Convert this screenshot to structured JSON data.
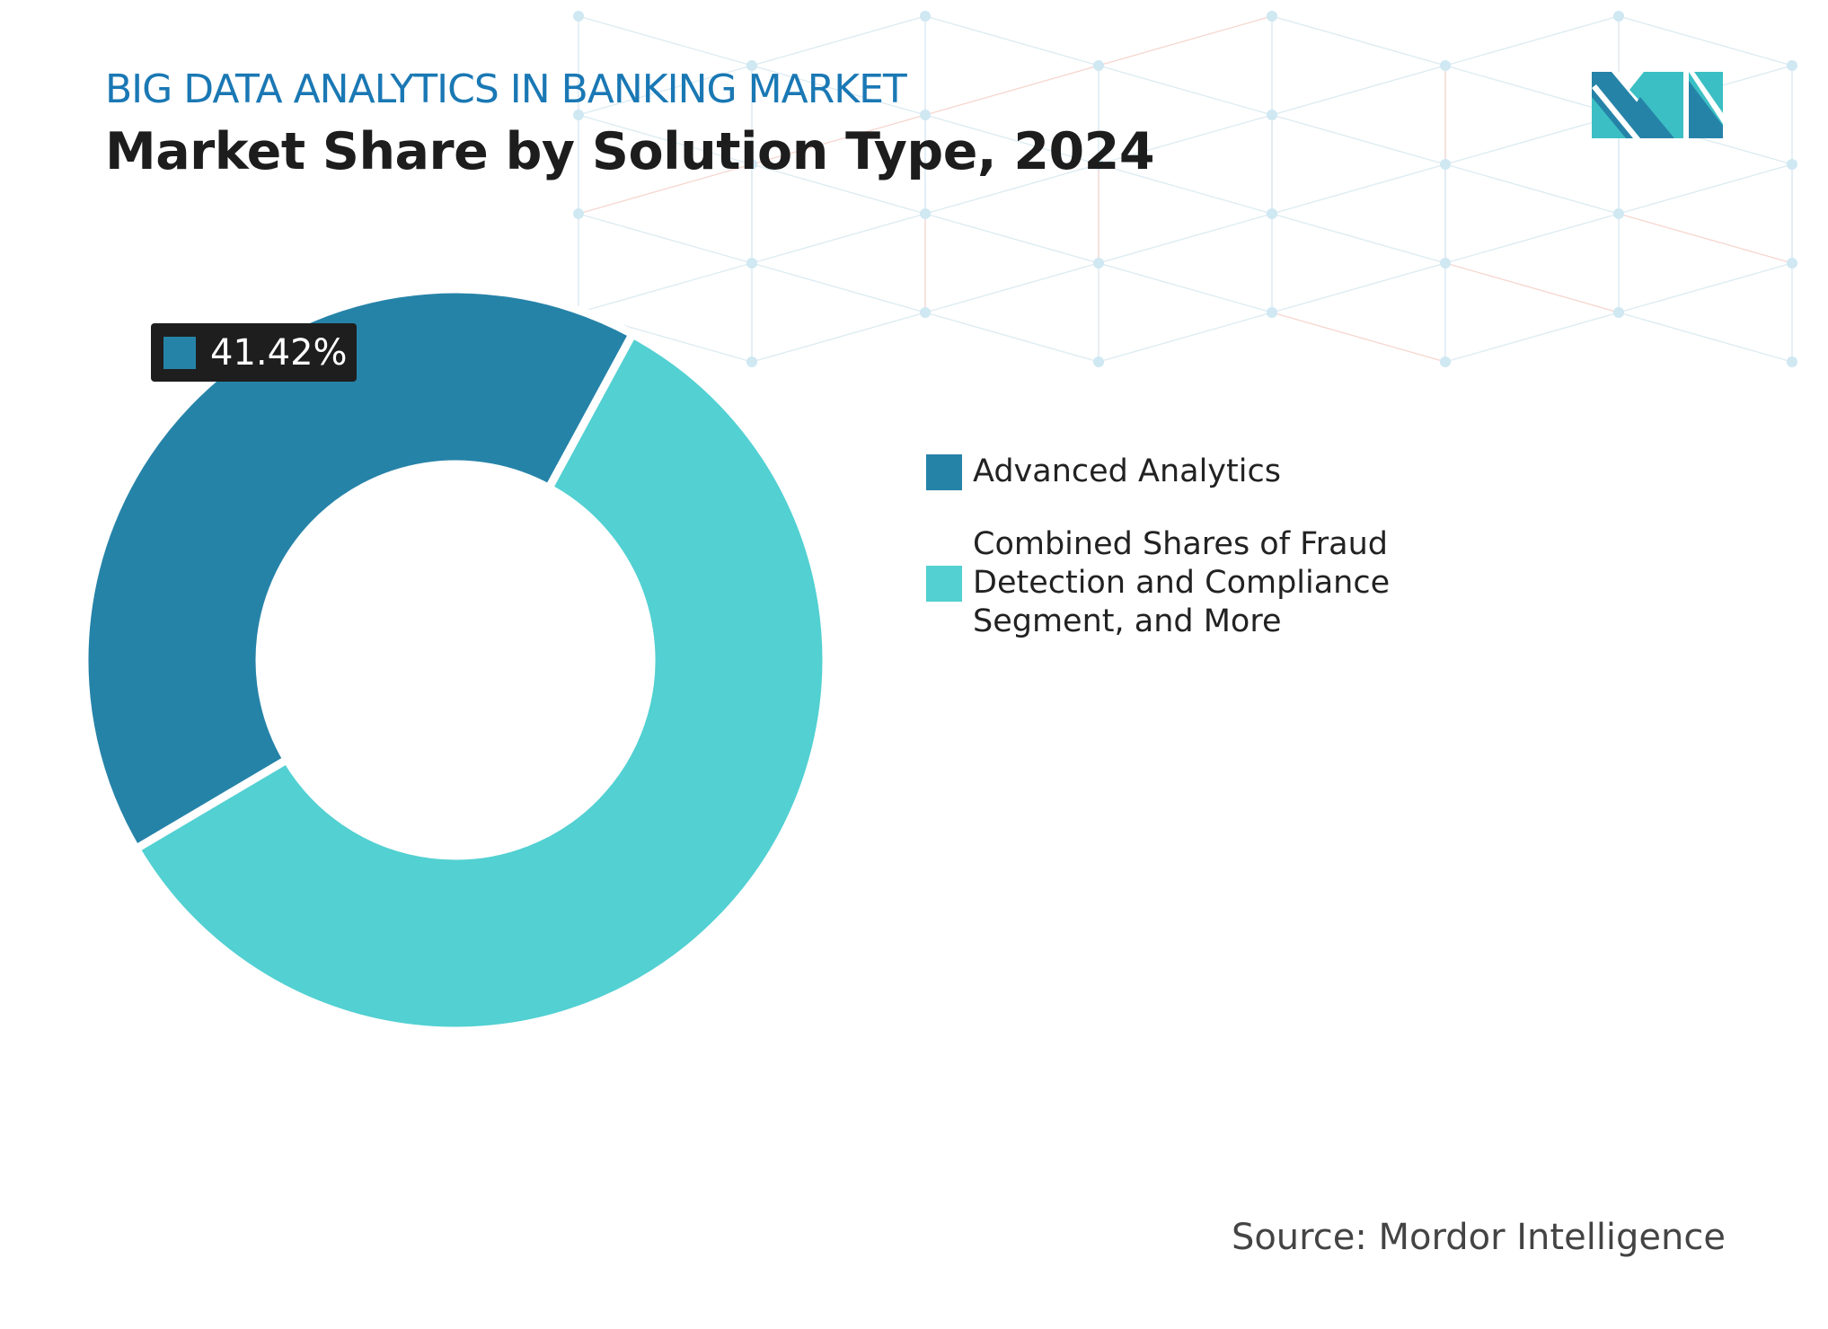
{
  "header": {
    "subtitle": "BIG DATA ANALYTICS IN BANKING MARKET",
    "title": "Market Share by Solution Type, 2024"
  },
  "chart_data": {
    "type": "pie",
    "style": "donut",
    "series": [
      {
        "name": "Advanced Analytics",
        "value": 41.42,
        "color": "#2683a8"
      },
      {
        "name": "Combined Shares of Fraud Detection and Compliance Segment, and More",
        "value": 58.58,
        "color": "#52d0d2"
      }
    ],
    "data_label": "41.42%",
    "legend_position": "right"
  },
  "source": "Source: Mordor Intelligence",
  "logo": {
    "text": "Mordor Intelligence",
    "colors": [
      "#2683a8",
      "#3bbfc4"
    ]
  }
}
